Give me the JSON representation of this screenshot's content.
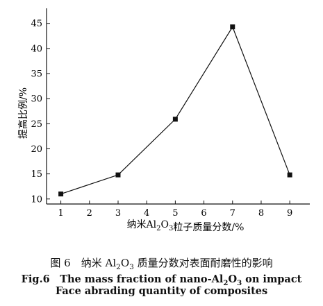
{
  "chart_data": {
    "type": "line",
    "x": [
      1,
      3,
      5,
      7,
      9
    ],
    "values": [
      11,
      14.8,
      25.9,
      44.3,
      14.8
    ],
    "xlim": [
      0.5,
      9.7
    ],
    "ylim": [
      9,
      48
    ],
    "xticks": [
      "1",
      "2",
      "3",
      "4",
      "5",
      "6",
      "7",
      "8",
      "9"
    ],
    "yticks": [
      "10",
      "15",
      "20",
      "25",
      "30",
      "35",
      "40",
      "45"
    ],
    "xlabel": "纳米Al2O3粒子质量分数/%",
    "ylabel": "提高比例/%",
    "marker": "square",
    "grid": false,
    "color": "#111111"
  },
  "caption": {
    "cn": "图 6　纳米 Al2O3 质量分数对表面耐磨性的影响",
    "en_line1": "Fig.6　The mass fraction of nano-Al2O3 on impact",
    "en_line2": "Face abrading quantity of composites"
  }
}
